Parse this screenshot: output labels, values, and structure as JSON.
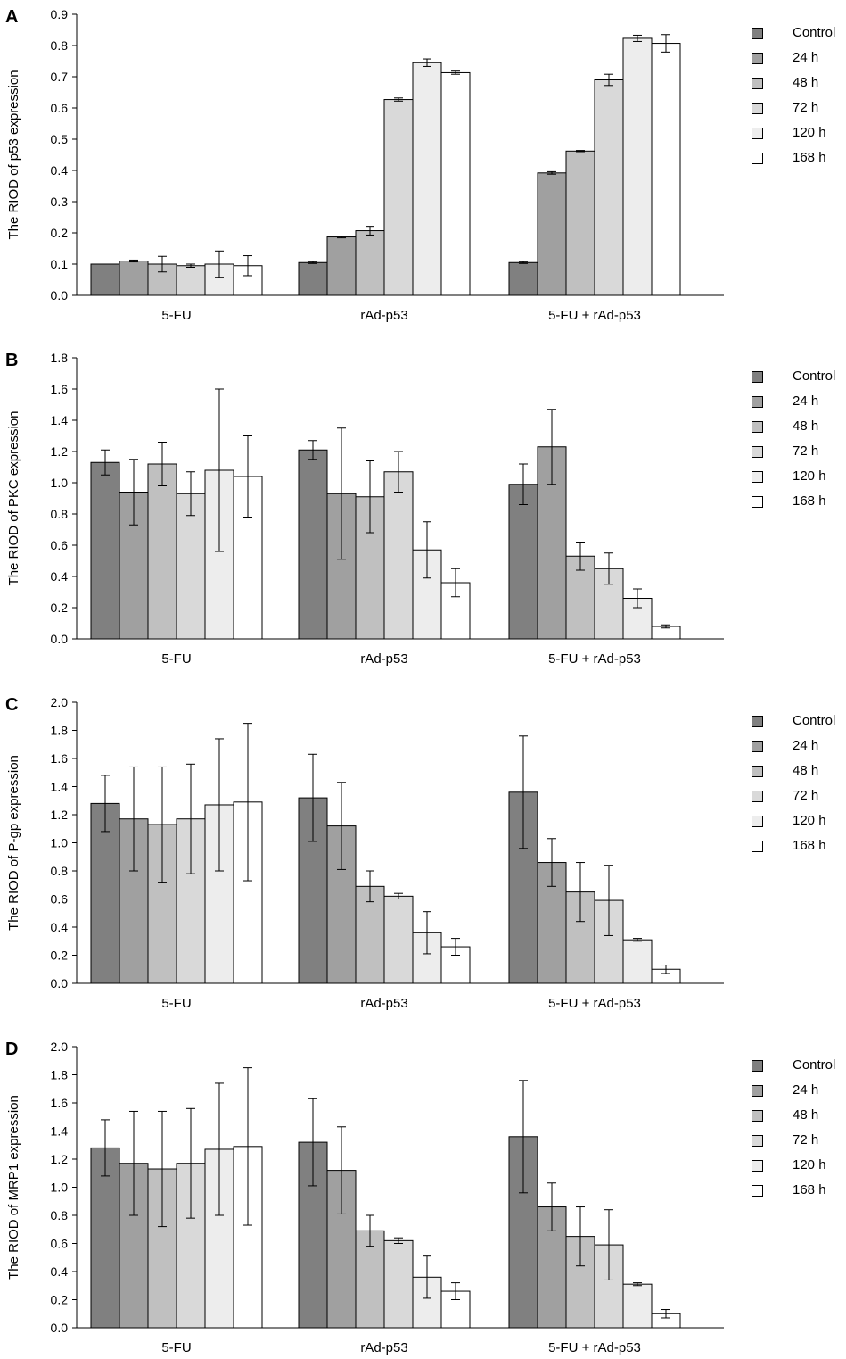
{
  "chart_data": [
    {
      "type": "bar",
      "panel": "A",
      "ylabel": "The RIOD of p53 expression",
      "ylim": [
        0,
        0.9
      ],
      "yticks": [
        "0.0",
        "0.1",
        "0.2",
        "0.3",
        "0.4",
        "0.5",
        "0.6",
        "0.7",
        "0.8",
        "0.9"
      ],
      "categories": [
        "5-FU",
        "rAd-p53",
        "5-FU + rAd-p53"
      ],
      "series": [
        {
          "name": "Control",
          "color": "#808080",
          "values": [
            0.1,
            0.105,
            0.105
          ],
          "errors": [
            0.0,
            0.003,
            0.003
          ]
        },
        {
          "name": "24 h",
          "color": "#a0a0a0",
          "values": [
            0.11,
            0.187,
            0.392
          ],
          "errors": [
            0.003,
            0.003,
            0.004
          ]
        },
        {
          "name": "48 h",
          "color": "#c0c0c0",
          "values": [
            0.1,
            0.207,
            0.462
          ],
          "errors": [
            0.025,
            0.014,
            0.002
          ]
        },
        {
          "name": "72 h",
          "color": "#d9d9d9",
          "values": [
            0.095,
            0.627,
            0.69
          ],
          "errors": [
            0.005,
            0.005,
            0.018
          ]
        },
        {
          "name": "120 h",
          "color": "#ededed",
          "values": [
            0.1,
            0.745,
            0.823
          ],
          "errors": [
            0.042,
            0.012,
            0.01
          ]
        },
        {
          "name": "168 h",
          "color": "#ffffff",
          "values": [
            0.095,
            0.713,
            0.807
          ],
          "errors": [
            0.032,
            0.005,
            0.028
          ]
        }
      ]
    },
    {
      "type": "bar",
      "panel": "B",
      "ylabel": "The RIOD of PKC expression",
      "ylim": [
        0,
        1.8
      ],
      "yticks": [
        "0.0",
        "0.2",
        "0.4",
        "0.6",
        "0.8",
        "1.0",
        "1.2",
        "1.4",
        "1.6",
        "1.8"
      ],
      "categories": [
        "5-FU",
        "rAd-p53",
        "5-FU + rAd-p53"
      ],
      "series": [
        {
          "name": "Control",
          "color": "#808080",
          "values": [
            1.13,
            1.21,
            0.99
          ],
          "errors": [
            0.08,
            0.06,
            0.13
          ]
        },
        {
          "name": "24 h",
          "color": "#a0a0a0",
          "values": [
            0.94,
            0.93,
            1.23
          ],
          "errors": [
            0.21,
            0.42,
            0.24
          ]
        },
        {
          "name": "48 h",
          "color": "#c0c0c0",
          "values": [
            1.12,
            0.91,
            0.53
          ],
          "errors": [
            0.14,
            0.23,
            0.09
          ]
        },
        {
          "name": "72 h",
          "color": "#d9d9d9",
          "values": [
            0.93,
            1.07,
            0.45
          ],
          "errors": [
            0.14,
            0.13,
            0.1
          ]
        },
        {
          "name": "120 h",
          "color": "#ededed",
          "values": [
            1.08,
            0.57,
            0.26
          ],
          "errors": [
            0.52,
            0.18,
            0.06
          ]
        },
        {
          "name": "168 h",
          "color": "#ffffff",
          "values": [
            1.04,
            0.36,
            0.08
          ],
          "errors": [
            0.26,
            0.09,
            0.01
          ]
        }
      ]
    },
    {
      "type": "bar",
      "panel": "C",
      "ylabel": "The RIOD of P-gp expression",
      "ylim": [
        0,
        2.0
      ],
      "yticks": [
        "0.0",
        "0.2",
        "0.4",
        "0.6",
        "0.8",
        "1.0",
        "1.2",
        "1.4",
        "1.6",
        "1.8",
        "2.0"
      ],
      "categories": [
        "5-FU",
        "rAd-p53",
        "5-FU + rAd-p53"
      ],
      "series": [
        {
          "name": "Control",
          "color": "#808080",
          "values": [
            1.28,
            1.32,
            1.36
          ],
          "errors": [
            0.2,
            0.31,
            0.4
          ]
        },
        {
          "name": "24 h",
          "color": "#a0a0a0",
          "values": [
            1.17,
            1.12,
            0.86
          ],
          "errors": [
            0.37,
            0.31,
            0.17
          ]
        },
        {
          "name": "48 h",
          "color": "#c0c0c0",
          "values": [
            1.13,
            0.69,
            0.65
          ],
          "errors": [
            0.41,
            0.11,
            0.21
          ]
        },
        {
          "name": "72 h",
          "color": "#d9d9d9",
          "values": [
            1.17,
            0.62,
            0.59
          ],
          "errors": [
            0.39,
            0.02,
            0.25
          ]
        },
        {
          "name": "120 h",
          "color": "#ededed",
          "values": [
            1.27,
            0.36,
            0.31
          ],
          "errors": [
            0.47,
            0.15,
            0.01
          ]
        },
        {
          "name": "168 h",
          "color": "#ffffff",
          "values": [
            1.29,
            0.26,
            0.1
          ],
          "errors": [
            0.56,
            0.06,
            0.03
          ]
        }
      ]
    },
    {
      "type": "bar",
      "panel": "D",
      "ylabel": "The RIOD of MRP1 expression",
      "ylim": [
        0,
        2.0
      ],
      "yticks": [
        "0.0",
        "0.2",
        "0.4",
        "0.6",
        "0.8",
        "1.0",
        "1.2",
        "1.4",
        "1.6",
        "1.8",
        "2.0"
      ],
      "categories": [
        "5-FU",
        "rAd-p53",
        "5-FU + rAd-p53"
      ],
      "series": [
        {
          "name": "Control",
          "color": "#808080",
          "values": [
            1.28,
            1.32,
            1.36
          ],
          "errors": [
            0.2,
            0.31,
            0.4
          ]
        },
        {
          "name": "24 h",
          "color": "#a0a0a0",
          "values": [
            1.17,
            1.12,
            0.86
          ],
          "errors": [
            0.37,
            0.31,
            0.17
          ]
        },
        {
          "name": "48 h",
          "color": "#c0c0c0",
          "values": [
            1.13,
            0.69,
            0.65
          ],
          "errors": [
            0.41,
            0.11,
            0.21
          ]
        },
        {
          "name": "72 h",
          "color": "#d9d9d9",
          "values": [
            1.17,
            0.62,
            0.59
          ],
          "errors": [
            0.39,
            0.02,
            0.25
          ]
        },
        {
          "name": "120 h",
          "color": "#ededed",
          "values": [
            1.27,
            0.36,
            0.31
          ],
          "errors": [
            0.47,
            0.15,
            0.01
          ]
        },
        {
          "name": "168 h",
          "color": "#ffffff",
          "values": [
            1.29,
            0.26,
            0.1
          ],
          "errors": [
            0.56,
            0.06,
            0.03
          ]
        }
      ]
    }
  ]
}
